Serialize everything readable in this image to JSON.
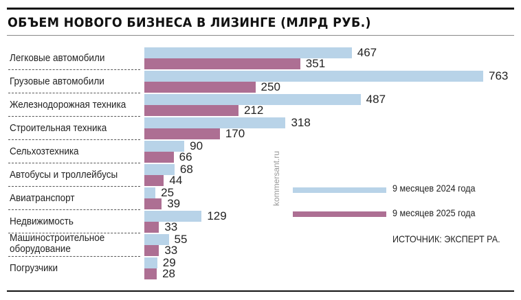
{
  "chart_data": {
    "type": "bar",
    "orientation": "horizontal",
    "title": "ОБЪЕМ НОВОГО БИЗНЕСА В ЛИЗИНГЕ (МЛРД РУБ.)",
    "categories": [
      "Легковые автомобили",
      "Грузовые автомобили",
      "Железнодорожная техника",
      "Строительная техника",
      "Сельхозтехника",
      "Автобусы и троллейбусы",
      "Авиатранспорт",
      "Недвижимость",
      "Машиностроительное оборудование",
      "Погрузчики"
    ],
    "series": [
      {
        "name": "9 месяцев 2024 года",
        "color": "#b8d3e8",
        "values": [
          467,
          763,
          487,
          318,
          90,
          68,
          25,
          129,
          55,
          29
        ]
      },
      {
        "name": "9 месяцев 2025 года",
        "color": "#ad6f93",
        "values": [
          351,
          250,
          212,
          170,
          66,
          44,
          39,
          33,
          33,
          28
        ]
      }
    ],
    "xlim": [
      0,
      763
    ],
    "legend": "right-middle",
    "source": "ИСТОЧНИК: ЭКСПЕРТ РА.",
    "watermark": "kommersant.ru"
  }
}
